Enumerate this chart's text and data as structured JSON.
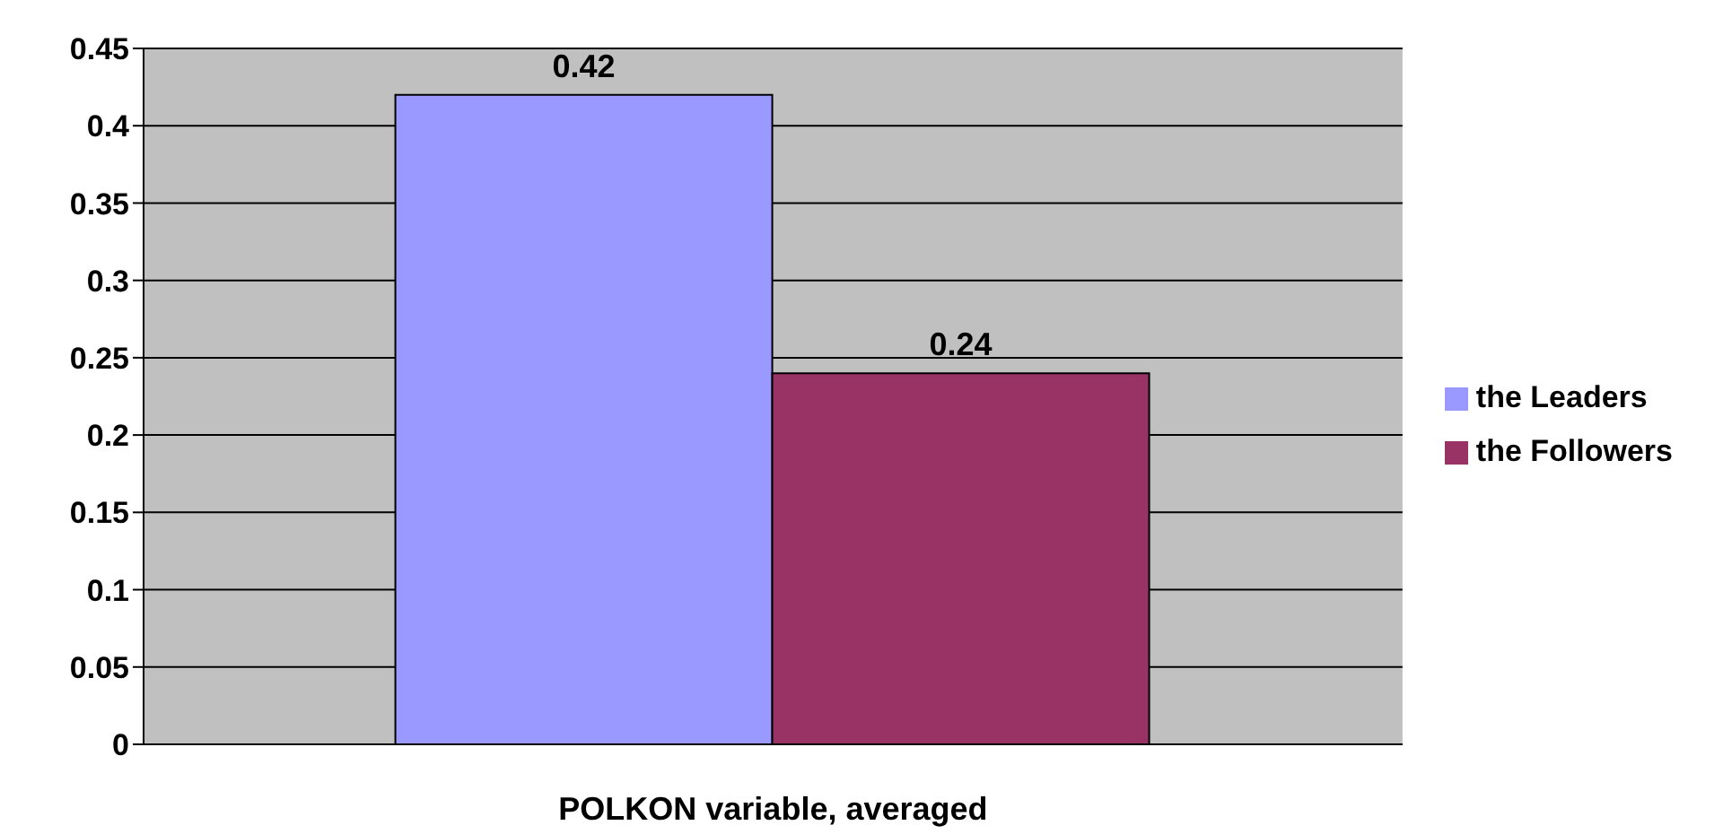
{
  "chart_data": {
    "type": "bar",
    "categories": [
      null
    ],
    "xlabel": "POLKON variable, averaged",
    "series": [
      {
        "name": "the Leaders",
        "color": "#9999ff",
        "values": [
          0.42
        ]
      },
      {
        "name": "the Followers",
        "color": "#993366",
        "values": [
          0.24
        ]
      }
    ],
    "ylim": [
      0,
      0.45
    ],
    "yticks": [
      0,
      0.05,
      0.1,
      0.15,
      0.2,
      0.25,
      0.3,
      0.35,
      0.4,
      0.45
    ],
    "grid": "y",
    "legend": "right",
    "data_labels": true
  }
}
